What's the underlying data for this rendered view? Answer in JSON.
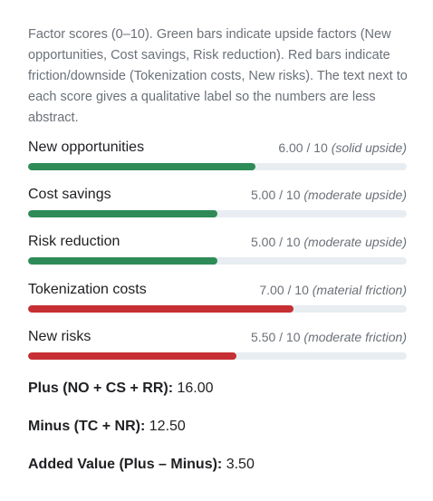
{
  "intro": "Factor scores (0–10). Green bars indicate upside factors (New opportunities, Cost savings, Risk reduction). Red bars indicate friction/downside (Tokenization costs, New risks). The text next to each score gives a qualitative label so the numbers are less abstract.",
  "colors": {
    "upside": "#2e8b57",
    "downside": "#c62f33",
    "track": "#e8edf2",
    "muted_text": "#6b7178"
  },
  "factors": [
    {
      "name": "New opportunities",
      "score_text": "6.00 / 10",
      "qualifier": "(solid upside)",
      "score": 6.0,
      "max": 10,
      "kind": "upside"
    },
    {
      "name": "Cost savings",
      "score_text": "5.00 / 10",
      "qualifier": "(moderate upside)",
      "score": 5.0,
      "max": 10,
      "kind": "upside"
    },
    {
      "name": "Risk reduction",
      "score_text": "5.00 / 10",
      "qualifier": "(moderate upside)",
      "score": 5.0,
      "max": 10,
      "kind": "upside"
    },
    {
      "name": "Tokenization costs",
      "score_text": "7.00 / 10",
      "qualifier": "(material friction)",
      "score": 7.0,
      "max": 10,
      "kind": "downside"
    },
    {
      "name": "New risks",
      "score_text": "5.50 / 10",
      "qualifier": "(moderate friction)",
      "score": 5.5,
      "max": 10,
      "kind": "downside"
    }
  ],
  "totals": {
    "plus_label": "Plus (NO + CS + RR):",
    "plus_value": "16.00",
    "minus_label": "Minus (TC + NR):",
    "minus_value": "12.50",
    "added_label": "Added Value (Plus – Minus):",
    "added_value": "3.50"
  }
}
